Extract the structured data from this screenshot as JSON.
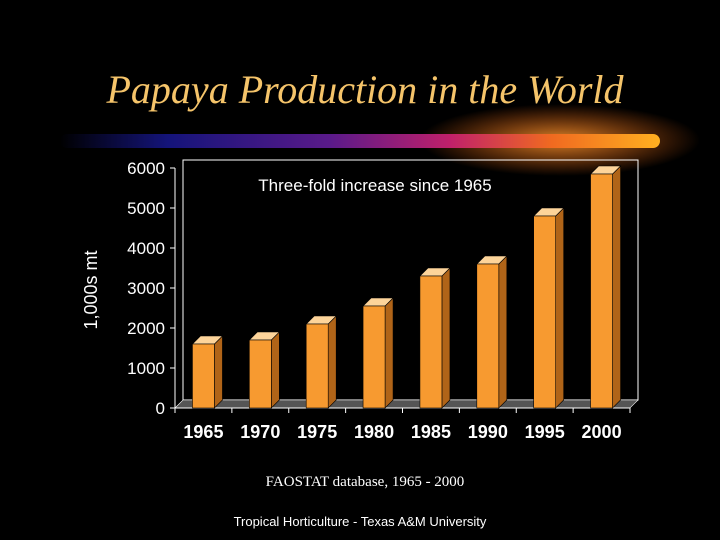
{
  "slide": {
    "title": "Papaya Production in the World",
    "source": "FAOSTAT database, 1965 - 2000",
    "footer": "Tropical Horticulture - Texas A&M University"
  },
  "colors": {
    "background": "#000000",
    "title": "#f5c46a",
    "bar_front": "#f79a30",
    "bar_top": "#fdd49a",
    "bar_side": "#b06418",
    "plot_border": "#ffffff"
  },
  "chart_data": {
    "type": "bar",
    "annotation": "Three-fold increase since 1965",
    "ylabel": "1,000s mt",
    "xlabel": "",
    "ylim": [
      0,
      6000
    ],
    "yticks": [
      0,
      1000,
      2000,
      3000,
      4000,
      5000,
      6000
    ],
    "categories": [
      "1965",
      "1970",
      "1975",
      "1980",
      "1985",
      "1990",
      "1995",
      "2000"
    ],
    "values": [
      1600,
      1700,
      2100,
      2550,
      3300,
      3600,
      4800,
      5850
    ],
    "grid": false,
    "legend": "none"
  }
}
